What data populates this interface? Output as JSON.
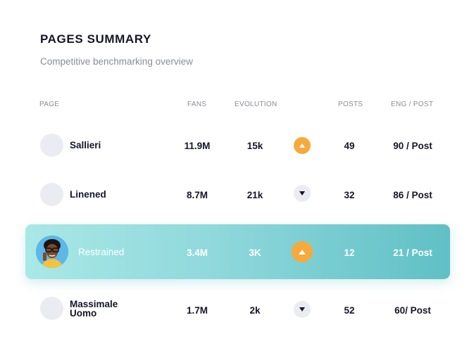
{
  "header": {
    "title": "PAGES SUMMARY",
    "subtitle": "Competitive benchmarking overview"
  },
  "columns": {
    "page": "PAGE",
    "fans": "FANS",
    "evolution": "EVOLUTION",
    "posts": "POSTS",
    "eng_post": "ENG / POST"
  },
  "rows": [
    {
      "name": "Sallieri",
      "fans": "11.9M",
      "evolution": "15k",
      "trend": "up",
      "posts": "49",
      "eng_post": "90 / Post"
    },
    {
      "name": "Linened",
      "fans": "8.7M",
      "evolution": "21k",
      "trend": "down",
      "posts": "32",
      "eng_post": "86 / Post"
    },
    {
      "name": "Restrained",
      "fans": "3.4M",
      "evolution": "3K",
      "trend": "up",
      "posts": "12",
      "eng_post": "21 / Post",
      "highlighted": true
    },
    {
      "name_line1": "Massimale",
      "name_line2": "Uomo",
      "fans": "1.7M",
      "evolution": "2k",
      "trend": "down",
      "posts": "52",
      "eng_post": "60/ Post"
    }
  ],
  "colors": {
    "accent_orange": "#f7a93b",
    "highlight_start": "#a9e8e6",
    "highlight_end": "#5fc0c5",
    "avatar_placeholder": "#ebebf2"
  },
  "icons": {
    "trend_up": "triangle-up-icon",
    "trend_down": "triangle-down-icon"
  }
}
